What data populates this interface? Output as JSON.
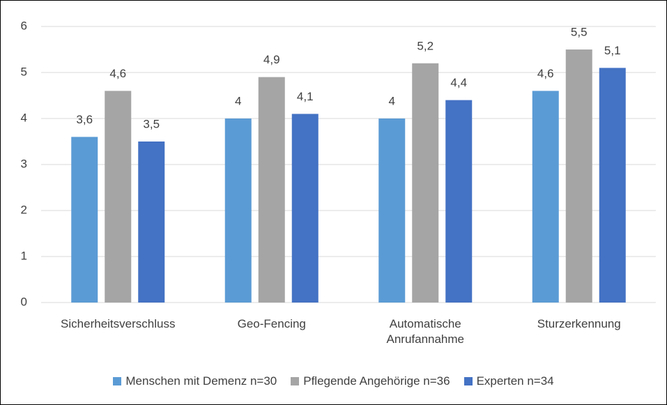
{
  "chart_data": {
    "type": "bar",
    "categories": [
      "Sicherheitsverschluss",
      "Geo-Fencing",
      "Automatische Anrufannahme",
      "Sturzerkennung"
    ],
    "series": [
      {
        "name": "Menschen mit Demenz n=30",
        "color": "#5b9bd5",
        "values": [
          3.6,
          4,
          4,
          4.6
        ],
        "value_labels": [
          "3,6",
          "4",
          "4",
          "4,6"
        ]
      },
      {
        "name": "Pflegende Angehörige n=36",
        "color": "#a5a5a5",
        "values": [
          4.6,
          4.9,
          5.2,
          5.5
        ],
        "value_labels": [
          "4,6",
          "4,9",
          "5,2",
          "5,5"
        ]
      },
      {
        "name": "Experten n=34",
        "color": "#4472c4",
        "values": [
          3.5,
          4.1,
          4.4,
          5.1
        ],
        "value_labels": [
          "3,5",
          "4,1",
          "4,4",
          "5,1"
        ]
      }
    ],
    "ylim": [
      0,
      6
    ],
    "yticks": [
      0,
      1,
      2,
      3,
      4,
      5,
      6
    ],
    "grid": true,
    "legend": "bottom"
  }
}
